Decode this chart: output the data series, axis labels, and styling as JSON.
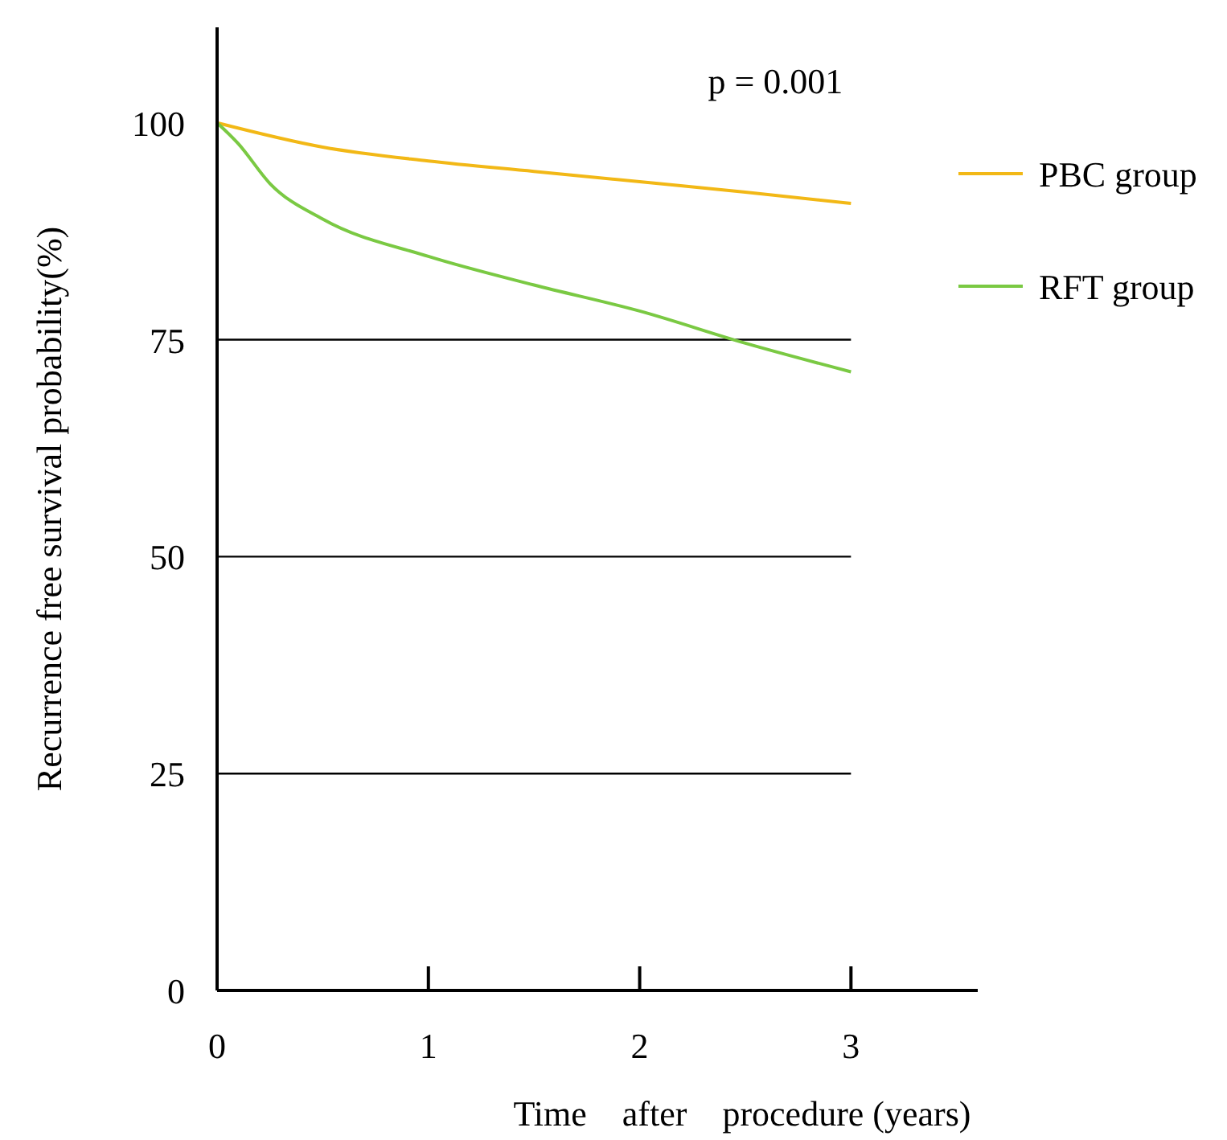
{
  "chart_data": {
    "type": "line",
    "xlabel": "Time    after    procedure (years)",
    "ylabel": "Recurrence free survival probability(%)",
    "annotations": [
      "p = 0.001"
    ],
    "xlim": [
      0,
      3.6
    ],
    "xticks": [
      0,
      1,
      2,
      3
    ],
    "ylim": [
      0,
      111
    ],
    "yticks": [
      0,
      25,
      50,
      75,
      100
    ],
    "legend": "right",
    "line_style": "solid",
    "marker": "none",
    "ref_lines": [
      {
        "axis": "y",
        "value": 25,
        "color": "#000000"
      },
      {
        "axis": "y",
        "value": 50,
        "color": "#000000"
      },
      {
        "axis": "y",
        "value": 75,
        "color": "#000000"
      }
    ],
    "series": [
      {
        "name": "PBC group",
        "color": "#f2b816",
        "x": [
          0,
          0.5,
          1,
          1.5,
          2,
          2.5,
          3
        ],
        "values": [
          100,
          97.2,
          95.6,
          94.4,
          93.2,
          92,
          90.7
        ]
      },
      {
        "name": "RFT group",
        "color": "#7ac943",
        "x": [
          0,
          0.1,
          0.25,
          0.5,
          1,
          1.5,
          2,
          2.5,
          3
        ],
        "values": [
          100,
          97.6,
          93,
          88.9,
          84.6,
          81.3,
          78.3,
          74.6,
          71.3
        ]
      }
    ]
  }
}
